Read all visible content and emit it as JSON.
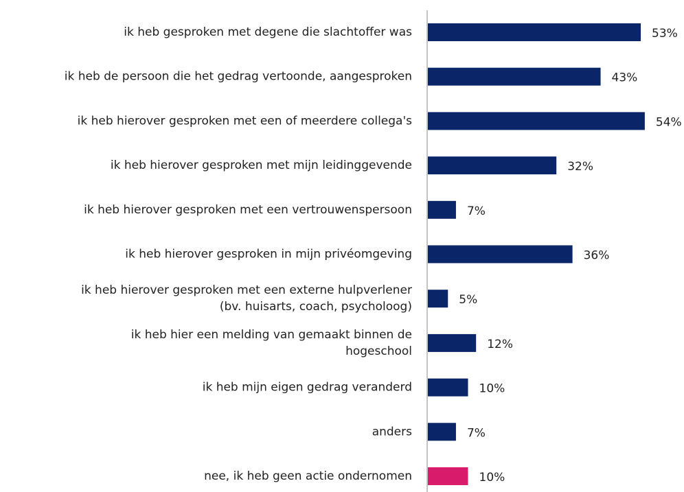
{
  "chart_data": {
    "type": "hbar",
    "categories": [
      "ik heb gesproken met degene die slachtoffer was",
      "ik heb de persoon die het gedrag vertoonde, aangesproken",
      "ik heb hierover gesproken met een of meerdere collega's",
      "ik heb hierover gesproken met mijn leidinggevende",
      "ik heb hierover gesproken met een vertrouwenspersoon",
      "ik heb hierover gesproken in mijn privéomgeving",
      [
        "ik heb hierover gesproken met een externe hulpverlener",
        "(bv. huisarts, coach, psycholoog)"
      ],
      [
        "ik heb hier een melding van gemaakt binnen de",
        "hogeschool"
      ],
      "ik heb mijn eigen gedrag veranderd",
      "anders",
      "nee, ik heb geen actie ondernomen"
    ],
    "values": [
      53,
      43,
      54,
      32,
      7,
      36,
      5,
      12,
      10,
      7,
      10
    ],
    "value_labels": [
      "53%",
      "43%",
      "54%",
      "32%",
      "7%",
      "36%",
      "5%",
      "12%",
      "10%",
      "7%",
      "10%"
    ],
    "colors": [
      "#0b2569",
      "#0b2569",
      "#0b2569",
      "#0b2569",
      "#0b2569",
      "#0b2569",
      "#0b2569",
      "#0b2569",
      "#0b2569",
      "#0b2569",
      "#d81b6a"
    ],
    "xlim": [
      0,
      60
    ]
  }
}
